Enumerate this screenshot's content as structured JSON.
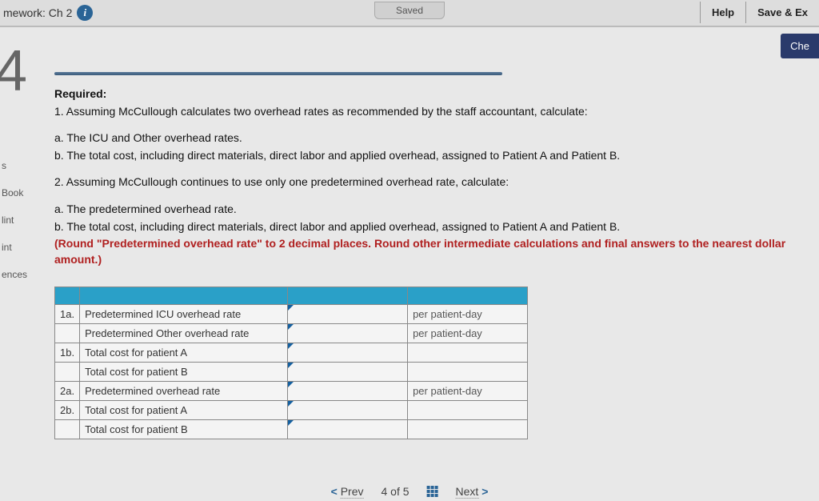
{
  "header": {
    "breadcrumb": "mework: Ch 2",
    "saved": "Saved",
    "help": "Help",
    "save_exit": "Save & Ex",
    "check": "Che"
  },
  "question_number": "4",
  "sidebar": {
    "s": "s",
    "book": "Book",
    "hint": "lint",
    "print": "int",
    "references": "ences"
  },
  "required": {
    "title": "Required:",
    "line1": "1. Assuming McCullough calculates two overhead rates as recommended by the staff accountant, calculate:",
    "item1a": "a. The ICU and Other overhead rates.",
    "item1b": "b. The total cost, including direct materials, direct labor and applied overhead, assigned to Patient A and Patient B.",
    "line2": "2. Assuming McCullough continues to use only one predetermined overhead rate, calculate:",
    "item2a": "a. The predetermined overhead rate.",
    "item2b": "b. The total cost, including direct materials, direct labor and applied overhead, assigned to Patient A and Patient B.",
    "round": "(Round \"Predetermined overhead rate\" to 2 decimal places. Round other intermediate calculations and final answers to the nearest dollar amount.)"
  },
  "table": {
    "rows": [
      {
        "num": "1a.",
        "label": "Predetermined ICU overhead rate",
        "unit": "per patient-day"
      },
      {
        "num": "",
        "label": "Predetermined Other overhead rate",
        "unit": "per patient-day"
      },
      {
        "num": "1b.",
        "label": "Total cost for patient A",
        "unit": ""
      },
      {
        "num": "",
        "label": "Total cost for patient B",
        "unit": ""
      },
      {
        "num": "2a.",
        "label": "Predetermined overhead rate",
        "unit": "per patient-day"
      },
      {
        "num": "2b.",
        "label": "Total cost for patient A",
        "unit": ""
      },
      {
        "num": "",
        "label": "Total cost for patient B",
        "unit": ""
      }
    ]
  },
  "nav": {
    "prev": "Prev",
    "position": "4 of 5",
    "next": "Next"
  }
}
